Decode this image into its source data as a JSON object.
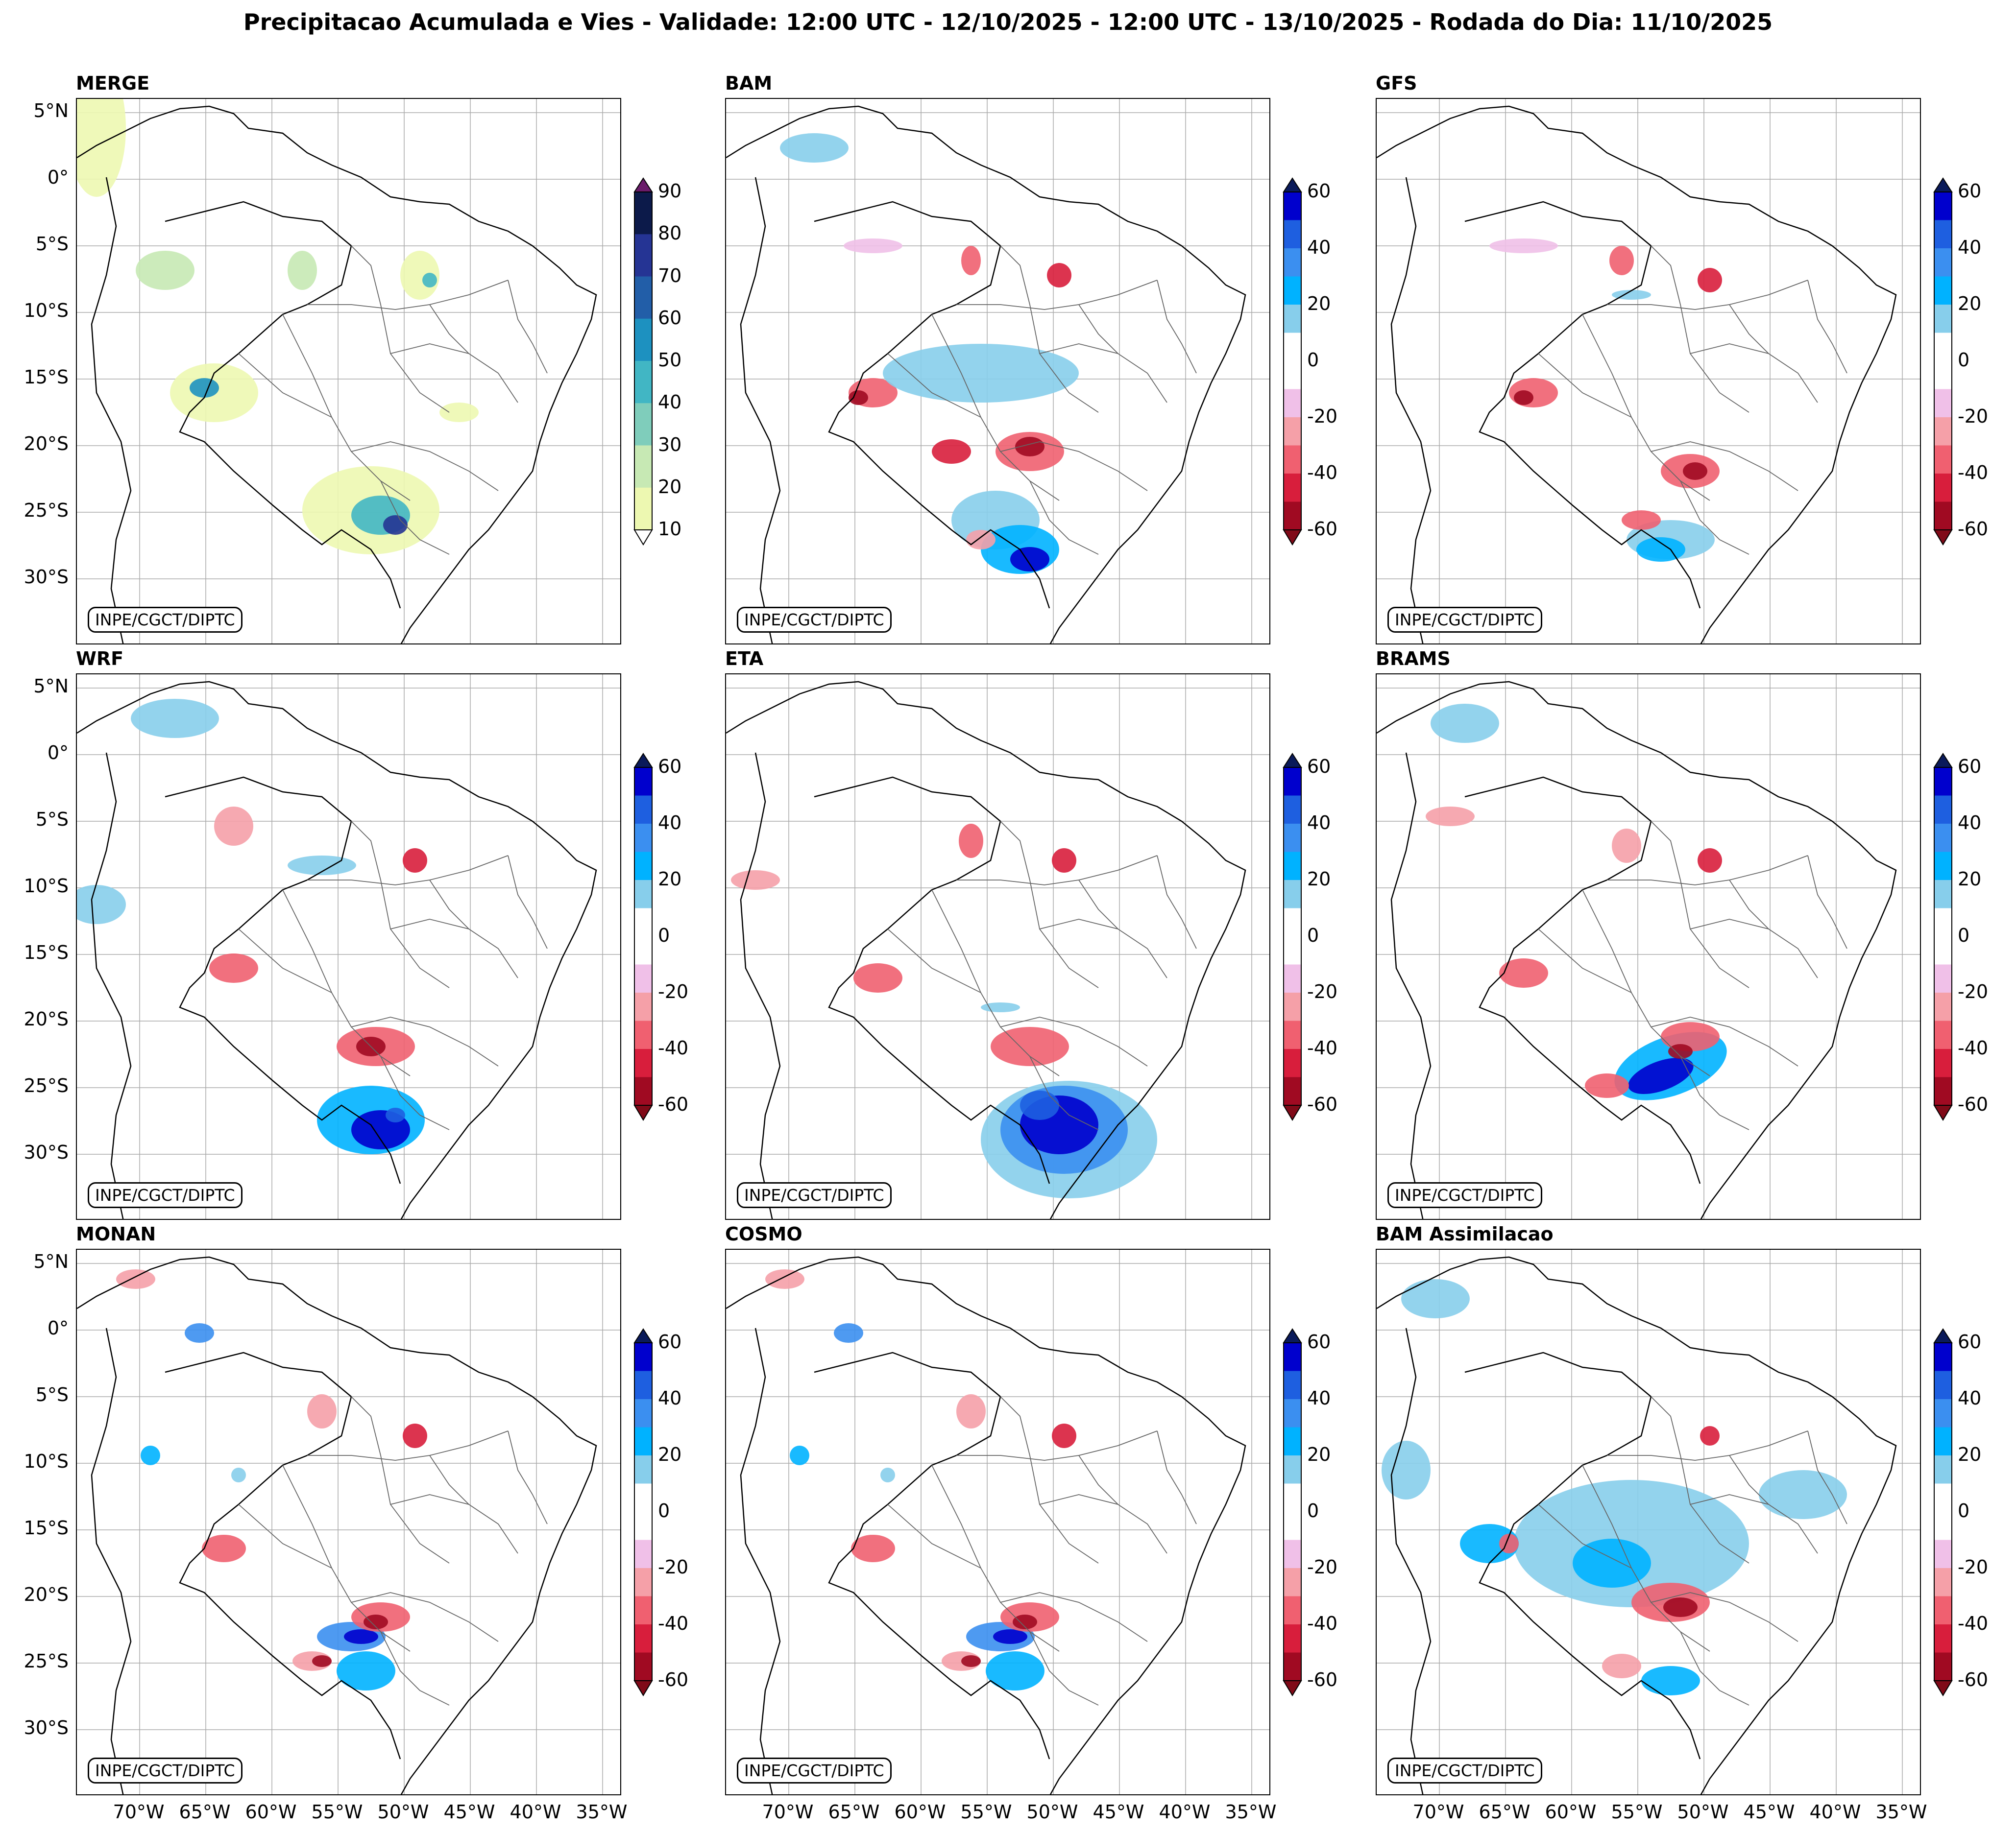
{
  "title": "Precipitacao Acumulada e Vies - Validade: 12:00 UTC - 12/10/2025 - 12:00 UTC - 13/10/2025 - Rodada do Dia: 11/10/2025",
  "credit": "INPE/CGCT/DIPTC",
  "lat_labels": [
    "5°N",
    "0°",
    "5°S",
    "10°S",
    "15°S",
    "20°S",
    "25°S",
    "30°S"
  ],
  "lon_labels": [
    "70°W",
    "65°W",
    "60°W",
    "55°W",
    "50°W",
    "45°W",
    "40°W",
    "35°W"
  ],
  "panels": [
    {
      "name": "MERGE",
      "kind": "precip"
    },
    {
      "name": "BAM",
      "kind": "bias"
    },
    {
      "name": "GFS",
      "kind": "bias"
    },
    {
      "name": "WRF",
      "kind": "bias"
    },
    {
      "name": "ETA",
      "kind": "bias"
    },
    {
      "name": "BRAMS",
      "kind": "bias"
    },
    {
      "name": "MONAN",
      "kind": "bias"
    },
    {
      "name": "COSMO",
      "kind": "bias"
    },
    {
      "name": "BAM Assimilacao",
      "kind": "bias"
    }
  ],
  "precip_colorbar": {
    "ticks": [
      "90",
      "80",
      "70",
      "60",
      "50",
      "40",
      "30",
      "20",
      "10"
    ],
    "colors": [
      "#0c1a4a",
      "#253494",
      "#225ea8",
      "#1d91c0",
      "#41b6c4",
      "#7fcdbb",
      "#c7e9b4",
      "#edf8b1"
    ],
    "extend_top": "#6a1b6a"
  },
  "bias_colorbar": {
    "ticks": [
      "60",
      "40",
      "20",
      "0",
      "-20",
      "-40",
      "-60"
    ],
    "colors": [
      "#0000cd",
      "#1e5fe0",
      "#3b8ff0",
      "#00b2ff",
      "#87ceeb",
      "#ffffff",
      "#ffffff",
      "#f0c0e8",
      "#f5a0a8",
      "#f06070",
      "#d81e3c",
      "#a00a22"
    ],
    "extend_top": "#0a1a5a",
    "extend_bottom": "#800a18"
  }
}
